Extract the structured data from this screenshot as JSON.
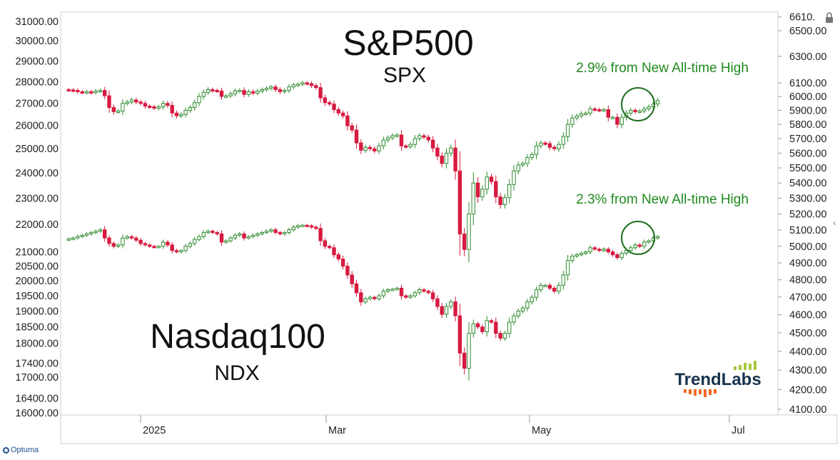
{
  "chart_data": {
    "type": "candlestick",
    "title_primary": "S&P500",
    "subtitle_primary": "SPX",
    "title_secondary": "Nasdaq100",
    "subtitle_secondary": "NDX",
    "annotations": [
      {
        "text": "2.9% from New All-time High",
        "series": "SPX"
      },
      {
        "text": "2.3% from New All-time High",
        "series": "NDX"
      }
    ],
    "left_axis_ticks": [
      "31000.00",
      "30000.00",
      "29000.00",
      "28000.00",
      "27000.00",
      "26000.00",
      "25000.00",
      "24000.00",
      "23000.00",
      "22000.00",
      "21000.00",
      "20500.00",
      "20000.00",
      "19500.00",
      "19000.00",
      "18500.00",
      "18000.00",
      "17400.00",
      "17000.00",
      "16400.00",
      "16000.00"
    ],
    "right_axis_ticks": [
      "6610.",
      "6500.00",
      "6300.00",
      "6100.00",
      "6000.00",
      "5900.00",
      "5800.00",
      "5700.00",
      "5600.00",
      "5500.00",
      "5400.00",
      "5300.00",
      "5200.00",
      "5100.00",
      "5000.00",
      "4900.00",
      "4800.00",
      "4700.00",
      "4600.00",
      "4500.00",
      "4400.00",
      "4300.00",
      "4200.00",
      "4100.00"
    ],
    "x_axis_labels": [
      "2025",
      "Mar",
      "May",
      "Jul"
    ],
    "colors": {
      "up": "#2e8b2e",
      "down": "#d81a40",
      "annotation": "#1f8a1f",
      "circle": "#1f6e1f"
    },
    "spx_path": [
      6050,
      6048,
      6045,
      6035,
      6030,
      6035,
      6030,
      6040,
      6045,
      6005,
      5920,
      5890,
      5895,
      5950,
      5960,
      5975,
      5960,
      5950,
      5930,
      5925,
      5915,
      5925,
      5950,
      5935,
      5880,
      5860,
      5870,
      5900,
      5920,
      5955,
      6000,
      6030,
      6050,
      6045,
      6040,
      6000,
      6005,
      6020,
      6040,
      6045,
      6015,
      6035,
      6025,
      6040,
      6050,
      6060,
      6070,
      6050,
      6035,
      6045,
      6070,
      6085,
      6090,
      6100,
      6095,
      6080,
      6065,
      5990,
      5955,
      5945,
      5905,
      5880,
      5860,
      5790,
      5760,
      5670,
      5620,
      5640,
      5630,
      5615,
      5650,
      5690,
      5705,
      5720,
      5725,
      5650,
      5645,
      5660,
      5700,
      5720,
      5710,
      5690,
      5635,
      5580,
      5530,
      5600,
      5635,
      5480,
      5075,
      4980,
      5200,
      5400,
      5310,
      5360,
      5440,
      5410,
      5310,
      5260,
      5305,
      5390,
      5480,
      5520,
      5530,
      5570,
      5590,
      5650,
      5670,
      5665,
      5640,
      5630,
      5660,
      5715,
      5800,
      5845,
      5860,
      5875,
      5880,
      5910,
      5905,
      5900,
      5905,
      5850,
      5850,
      5800,
      5850,
      5880,
      5900,
      5890,
      5895,
      5910,
      5925,
      5945,
      5970
    ],
    "ndx_path": [
      21450,
      21470,
      21500,
      21560,
      21600,
      21650,
      21700,
      21750,
      21800,
      21500,
      21300,
      21200,
      21250,
      21500,
      21550,
      21500,
      21420,
      21300,
      21250,
      21200,
      21180,
      21200,
      21350,
      21250,
      21050,
      21000,
      21050,
      21200,
      21300,
      21450,
      21550,
      21700,
      21750,
      21700,
      21650,
      21350,
      21400,
      21500,
      21600,
      21650,
      21500,
      21550,
      21600,
      21650,
      21700,
      21750,
      21800,
      21700,
      21650,
      21700,
      21800,
      21900,
      21950,
      21970,
      21950,
      21900,
      21850,
      21400,
      21200,
      21150,
      20900,
      20750,
      20500,
      20200,
      19900,
      19600,
      19300,
      19400,
      19450,
      19400,
      19500,
      19650,
      19700,
      19720,
      19750,
      19500,
      19450,
      19500,
      19600,
      19700,
      19650,
      19600,
      19400,
      19150,
      18900,
      19150,
      19300,
      18850,
      17700,
      17250,
      18300,
      18600,
      18500,
      18350,
      18700,
      18650,
      18300,
      18150,
      18300,
      18650,
      18850,
      19000,
      19100,
      19300,
      19450,
      19700,
      19850,
      19850,
      19750,
      19650,
      19850,
      20200,
      20700,
      20850,
      20900,
      20950,
      21000,
      21150,
      21100,
      21050,
      21100,
      21000,
      20900,
      20800,
      20950,
      21050,
      21150,
      21250,
      21200,
      21350,
      21400,
      21500,
      21550
    ]
  }
}
